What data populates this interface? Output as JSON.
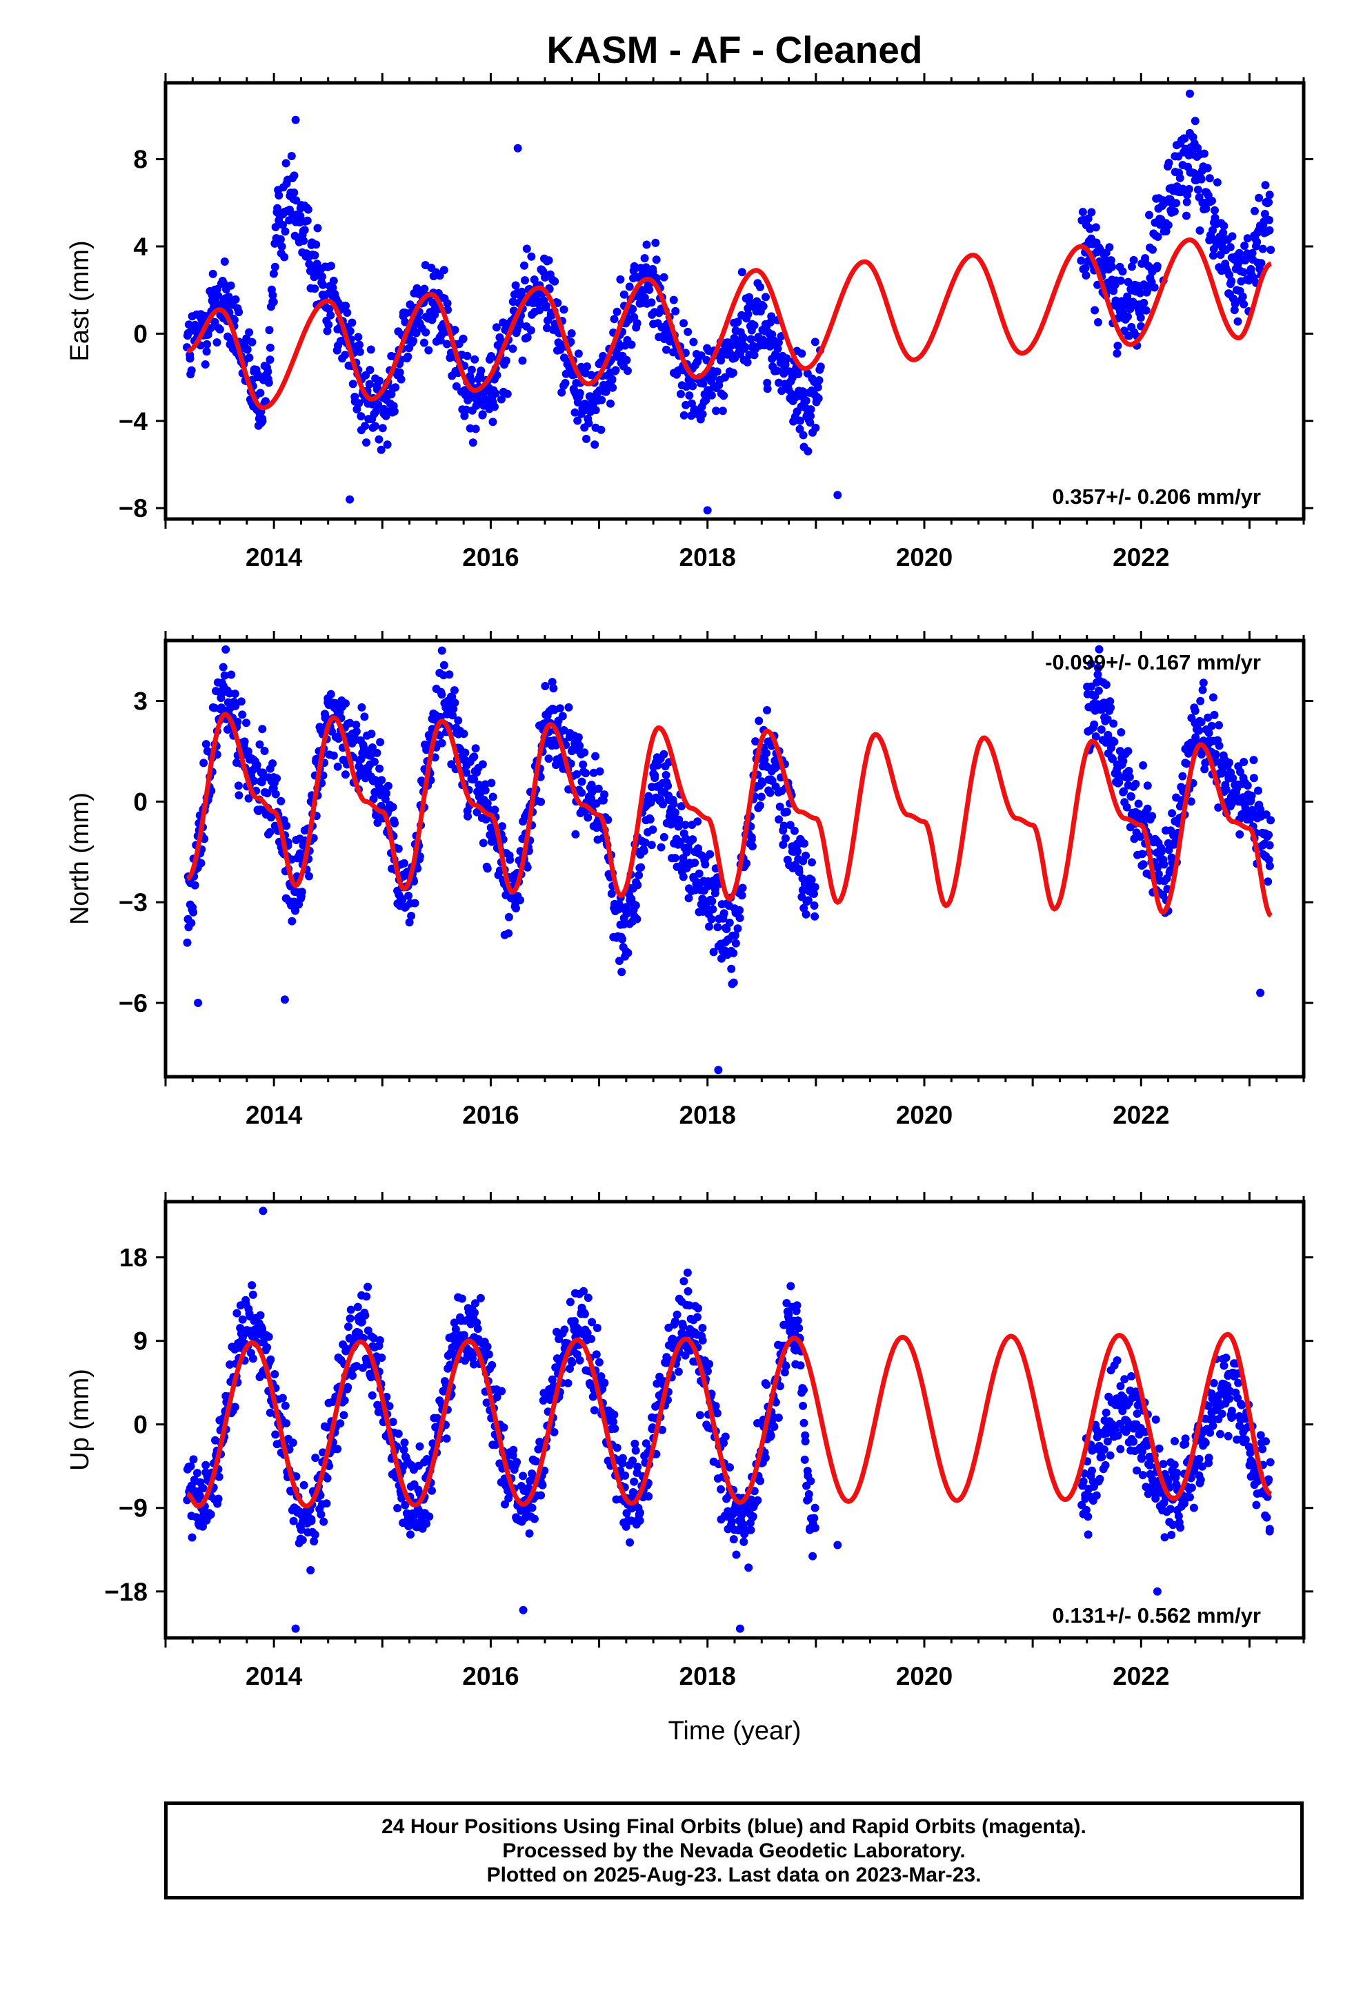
{
  "title": "KASM  - AF - Cleaned",
  "colors": {
    "data": "#0000ff",
    "model": "#ee1111",
    "frame": "#000000"
  },
  "footer": {
    "line1": "24 Hour Positions Using Final Orbits (blue) and Rapid Orbits (magenta).",
    "line2": "Processed by the Nevada Geodetic Laboratory.",
    "line3": "Plotted on 2025-Aug-23. Last data on 2023-Mar-23."
  },
  "chart_data": [
    {
      "type": "scatter",
      "ylabel": "East (mm)",
      "xlim": [
        2013.0,
        2023.5
      ],
      "ylim": [
        -8.5,
        11.5
      ],
      "yticks": [
        -8,
        -4,
        0,
        4,
        8
      ],
      "xticks": [
        2014,
        2016,
        2018,
        2020,
        2022
      ],
      "tick_labels": [
        "2014",
        "2016",
        "2018",
        "2020",
        "2022"
      ],
      "annotation": "0.357+/- 0.206 mm/yr",
      "annotation_position": "bottom-right",
      "rate_mm_per_yr": 0.357,
      "model": {
        "x": [
          2013.2,
          2013.5,
          2013.9,
          2014.5,
          2014.9,
          2015.45,
          2015.85,
          2016.45,
          2016.9,
          2017.45,
          2017.9,
          2018.45,
          2018.9,
          2019.45,
          2019.9,
          2020.45,
          2020.9,
          2021.45,
          2021.9,
          2022.45,
          2022.9,
          2023.2
        ],
        "y": [
          -0.8,
          1.1,
          -3.4,
          1.5,
          -3.0,
          1.8,
          -2.6,
          2.1,
          -2.3,
          2.5,
          -2.0,
          2.9,
          -1.6,
          3.3,
          -1.2,
          3.6,
          -0.9,
          4.0,
          -0.5,
          4.3,
          -0.2,
          3.2
        ]
      },
      "data_segments": [
        {
          "x": [
            2013.2,
            2013.5,
            2013.9,
            2014.05,
            2014.15,
            2014.5,
            2014.9,
            2015.45,
            2015.85,
            2016.45,
            2016.9,
            2017.45,
            2017.9,
            2018.45,
            2018.9,
            2019.05
          ],
          "y": [
            -0.8,
            1.4,
            -3.2,
            5.0,
            6.5,
            1.8,
            -3.3,
            1.5,
            -2.8,
            2.1,
            -3.2,
            2.2,
            -2.6,
            0.5,
            -3.2,
            -2.0
          ]
        },
        {
          "x": [
            2021.45,
            2021.6,
            2021.9,
            2022.45,
            2022.9,
            2023.2
          ],
          "y": [
            4.5,
            3.0,
            1.2,
            8.0,
            2.5,
            5.5
          ]
        }
      ],
      "outliers": [
        {
          "x": 2014.2,
          "y": 9.8
        },
        {
          "x": 2016.25,
          "y": 8.5
        },
        {
          "x": 2014.7,
          "y": -7.6
        },
        {
          "x": 2019.2,
          "y": -7.4
        },
        {
          "x": 2018.0,
          "y": -8.1
        },
        {
          "x": 2022.45,
          "y": 11.0
        }
      ]
    },
    {
      "type": "scatter",
      "ylabel": "North (mm)",
      "xlim": [
        2013.0,
        2023.5
      ],
      "ylim": [
        -8.2,
        4.8
      ],
      "yticks": [
        -6,
        -3,
        0,
        3
      ],
      "xticks": [
        2014,
        2016,
        2018,
        2020,
        2022
      ],
      "tick_labels": [
        "2014",
        "2016",
        "2018",
        "2020",
        "2022"
      ],
      "annotation": "-0.099+/- 0.167 mm/yr",
      "annotation_position": "top-right",
      "rate_mm_per_yr": -0.099,
      "model": {
        "x": [
          2013.2,
          2013.55,
          2013.85,
          2014.0,
          2014.2,
          2014.55,
          2014.85,
          2015.0,
          2015.2,
          2015.55,
          2015.85,
          2016.0,
          2016.2,
          2016.55,
          2016.85,
          2017.0,
          2017.2,
          2017.55,
          2017.85,
          2018.0,
          2018.2,
          2018.55,
          2018.85,
          2019.0,
          2019.2,
          2019.55,
          2019.85,
          2020.0,
          2020.2,
          2020.55,
          2020.85,
          2021.0,
          2021.2,
          2021.55,
          2021.85,
          2022.0,
          2022.2,
          2022.55,
          2022.85,
          2023.0,
          2023.2
        ],
        "y": [
          -2.3,
          2.6,
          0.1,
          -0.3,
          -2.5,
          2.5,
          0.0,
          -0.3,
          -2.6,
          2.4,
          -0.1,
          -0.4,
          -2.7,
          2.3,
          -0.1,
          -0.4,
          -2.8,
          2.2,
          -0.2,
          -0.5,
          -2.9,
          2.1,
          -0.3,
          -0.5,
          -3.0,
          2.0,
          -0.4,
          -0.6,
          -3.1,
          1.9,
          -0.5,
          -0.7,
          -3.2,
          1.8,
          -0.5,
          -0.7,
          -3.3,
          1.7,
          -0.6,
          -0.8,
          -3.4
        ]
      },
      "data_segments": [
        {
          "x": [
            2013.2,
            2013.55,
            2013.85,
            2014.0,
            2014.2,
            2014.55,
            2014.85,
            2015.0,
            2015.2,
            2015.55,
            2015.85,
            2016.0,
            2016.2,
            2016.55,
            2016.85,
            2017.0,
            2017.2,
            2017.55,
            2017.85,
            2018.0,
            2018.2,
            2018.55,
            2018.85,
            2019.0
          ],
          "y": [
            -3.0,
            3.0,
            0.5,
            0.0,
            -2.6,
            2.5,
            1.3,
            0.0,
            -2.6,
            2.7,
            0.8,
            -0.5,
            -2.8,
            2.4,
            0.5,
            -0.2,
            -4.0,
            0.5,
            -1.5,
            -2.5,
            -4.0,
            1.5,
            -1.5,
            -3.0
          ]
        },
        {
          "x": [
            2021.5,
            2021.6,
            2021.85,
            2022.0,
            2022.2,
            2022.55,
            2022.85,
            2023.0,
            2023.2
          ],
          "y": [
            2.5,
            3.5,
            0.5,
            -0.5,
            -2.3,
            2.0,
            0.2,
            0.0,
            -1.5
          ]
        }
      ],
      "outliers": [
        {
          "x": 2015.55,
          "y": 4.5
        },
        {
          "x": 2018.1,
          "y": -8.0
        },
        {
          "x": 2023.1,
          "y": -5.7
        },
        {
          "x": 2013.3,
          "y": -6.0
        },
        {
          "x": 2014.1,
          "y": -5.9
        }
      ]
    },
    {
      "type": "scatter",
      "ylabel": "Up (mm)",
      "xlabel": "Time (year)",
      "xlim": [
        2013.0,
        2023.5
      ],
      "ylim": [
        -23.0,
        24.0
      ],
      "yticks": [
        -18,
        -9,
        0,
        9,
        18
      ],
      "xticks": [
        2014,
        2016,
        2018,
        2020,
        2022
      ],
      "tick_labels": [
        "2014",
        "2016",
        "2018",
        "2020",
        "2022"
      ],
      "annotation": "0.131+/- 0.562 mm/yr",
      "annotation_position": "bottom-right",
      "rate_mm_per_yr": 0.131,
      "model": {
        "x": [
          2013.2,
          2013.3,
          2013.8,
          2014.3,
          2014.8,
          2015.3,
          2015.8,
          2016.3,
          2016.8,
          2017.3,
          2017.8,
          2018.3,
          2018.8,
          2019.3,
          2019.8,
          2020.3,
          2020.8,
          2021.3,
          2021.8,
          2022.3,
          2022.8,
          2023.2
        ],
        "y": [
          -7.5,
          -8.8,
          8.8,
          -8.8,
          8.9,
          -8.7,
          9.0,
          -8.6,
          9.1,
          -8.5,
          9.2,
          -8.4,
          9.3,
          -8.3,
          9.4,
          -8.2,
          9.5,
          -8.1,
          9.6,
          -8.0,
          9.7,
          -7.5
        ]
      },
      "data_segments": [
        {
          "x": [
            2013.2,
            2013.3,
            2013.8,
            2014.3,
            2014.8,
            2015.3,
            2015.8,
            2016.3,
            2016.8,
            2017.3,
            2017.8,
            2018.3,
            2018.8,
            2019.0
          ],
          "y": [
            -6.0,
            -9.0,
            11.0,
            -10.0,
            10.0,
            -9.0,
            11.0,
            -9.0,
            11.0,
            -8.0,
            11.0,
            -10.0,
            10.0,
            -13.0
          ]
        },
        {
          "x": [
            2021.45,
            2021.8,
            2022.3,
            2022.8,
            2023.2
          ],
          "y": [
            -8.0,
            2.0,
            -8.0,
            4.0,
            -8.0
          ]
        }
      ],
      "outliers": [
        {
          "x": 2013.9,
          "y": 23.0
        },
        {
          "x": 2014.2,
          "y": -22.0
        },
        {
          "x": 2016.3,
          "y": -20.0
        },
        {
          "x": 2018.3,
          "y": -22.0
        },
        {
          "x": 2022.15,
          "y": -18.0
        },
        {
          "x": 2019.2,
          "y": -13.0
        }
      ]
    }
  ]
}
